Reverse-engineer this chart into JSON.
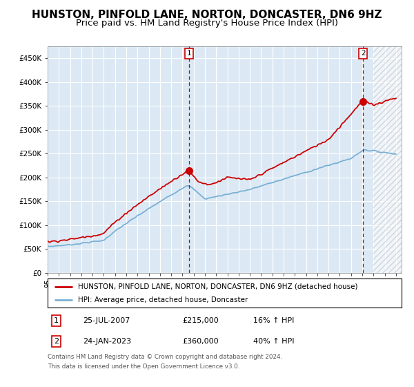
{
  "title": "HUNSTON, PINFOLD LANE, NORTON, DONCASTER, DN6 9HZ",
  "subtitle": "Price paid vs. HM Land Registry's House Price Index (HPI)",
  "ylim": [
    0,
    475000
  ],
  "yticks": [
    0,
    50000,
    100000,
    150000,
    200000,
    250000,
    300000,
    350000,
    400000,
    450000
  ],
  "ytick_labels": [
    "£0",
    "£50K",
    "£100K",
    "£150K",
    "£200K",
    "£250K",
    "£300K",
    "£350K",
    "£400K",
    "£450K"
  ],
  "xlim_start": 1995.0,
  "xlim_end": 2026.5,
  "hpi_color": "#7ab0d4",
  "price_color": "#cc0000",
  "marker1_date": 2007.58,
  "marker1_price": 215000,
  "marker1_label": "25-JUL-2007",
  "marker1_value": "£215,000",
  "marker1_pct": "16% ↑ HPI",
  "marker2_date": 2023.07,
  "marker2_price": 360000,
  "marker2_label": "24-JAN-2023",
  "marker2_value": "£360,000",
  "marker2_pct": "40% ↑ HPI",
  "legend_line1": "HUNSTON, PINFOLD LANE, NORTON, DONCASTER, DN6 9HZ (detached house)",
  "legend_line2": "HPI: Average price, detached house, Doncaster",
  "footer1": "Contains HM Land Registry data © Crown copyright and database right 2024.",
  "footer2": "This data is licensed under the Open Government Licence v3.0.",
  "bg_color": "#dce9f5",
  "title_fontsize": 11,
  "subtitle_fontsize": 9.5
}
